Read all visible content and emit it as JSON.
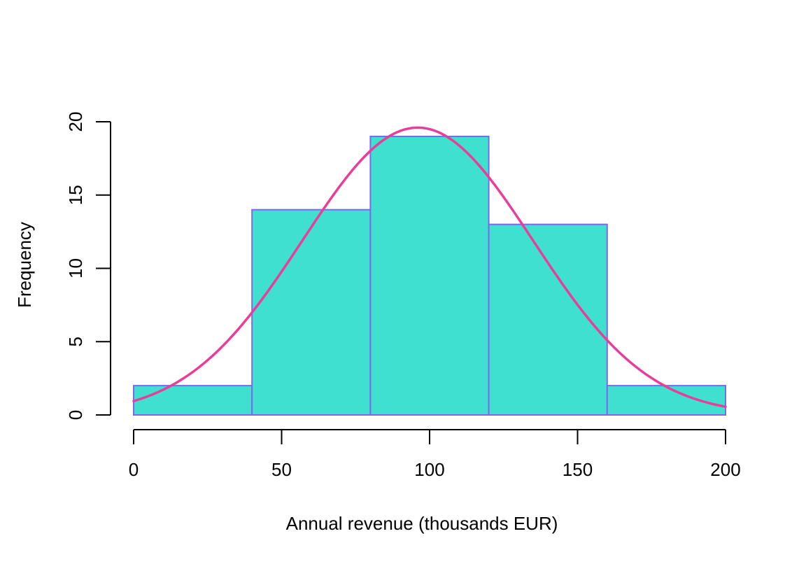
{
  "chart_data": {
    "type": "bar",
    "subtype": "histogram",
    "title": "",
    "xlabel": "Annual revenue (thousands EUR)",
    "ylabel": "Frequency",
    "bins": [
      {
        "start": 0,
        "end": 40,
        "count": 2
      },
      {
        "start": 40,
        "end": 80,
        "count": 14
      },
      {
        "start": 80,
        "end": 120,
        "count": 19
      },
      {
        "start": 120,
        "end": 160,
        "count": 13
      },
      {
        "start": 160,
        "end": 200,
        "count": 2
      }
    ],
    "xticks": [
      0,
      50,
      100,
      150,
      200
    ],
    "yticks": [
      0,
      5,
      10,
      15,
      20
    ],
    "xlim": [
      0,
      200
    ],
    "ylim": [
      0,
      20
    ],
    "density_curve": {
      "type": "normal",
      "mean": 96,
      "sd": 39,
      "peak": 19.6
    },
    "grid": false,
    "legend": "none",
    "colors": {
      "bar_fill": "#40E0D0",
      "bar_border": "#7B68EE",
      "curve": "#E83E9A",
      "axis": "#000000"
    }
  }
}
